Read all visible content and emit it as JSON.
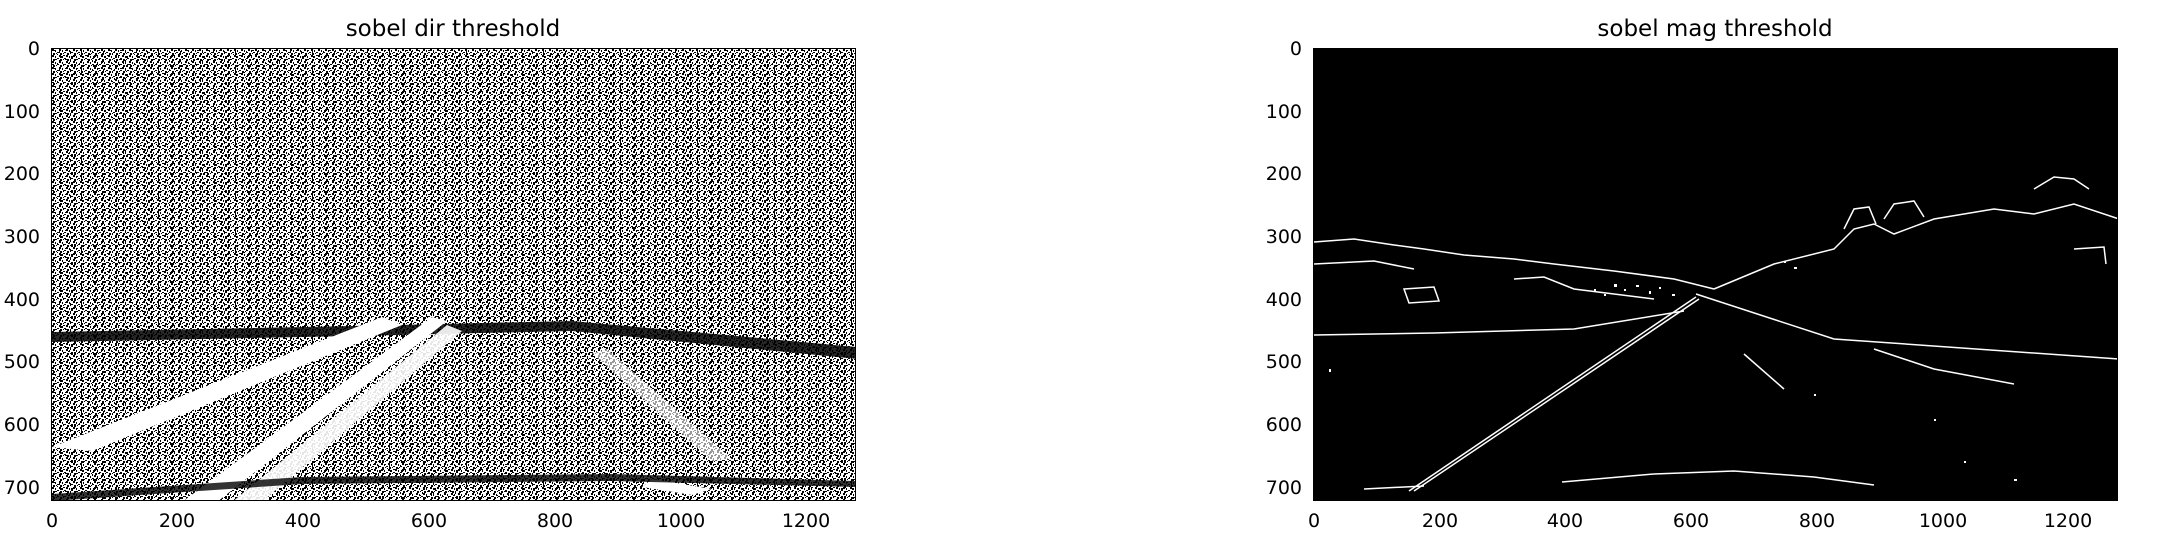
{
  "panels": [
    {
      "id": "dir",
      "title": "sobel dir threshold",
      "image": "binary thresholded road image, dense white noise",
      "x_ticks": [
        "0",
        "200",
        "400",
        "600",
        "800",
        "1000",
        "1200"
      ],
      "y_ticks": [
        "0",
        "100",
        "200",
        "300",
        "400",
        "500",
        "600",
        "700"
      ],
      "xlim": [
        0,
        1280
      ],
      "ylim": [
        720,
        0
      ]
    },
    {
      "id": "mag",
      "title": "sobel mag threshold",
      "image": "binary thresholded road image, sparse white edges on black",
      "x_ticks": [
        "0",
        "200",
        "400",
        "600",
        "800",
        "1000",
        "1200"
      ],
      "y_ticks": [
        "0",
        "100",
        "200",
        "300",
        "400",
        "500",
        "600",
        "700"
      ],
      "xlim": [
        0,
        1280
      ],
      "ylim": [
        720,
        0
      ]
    }
  ],
  "colors": {
    "fg": "#000000",
    "bg": "#ffffff",
    "edge": "#ffffff"
  }
}
